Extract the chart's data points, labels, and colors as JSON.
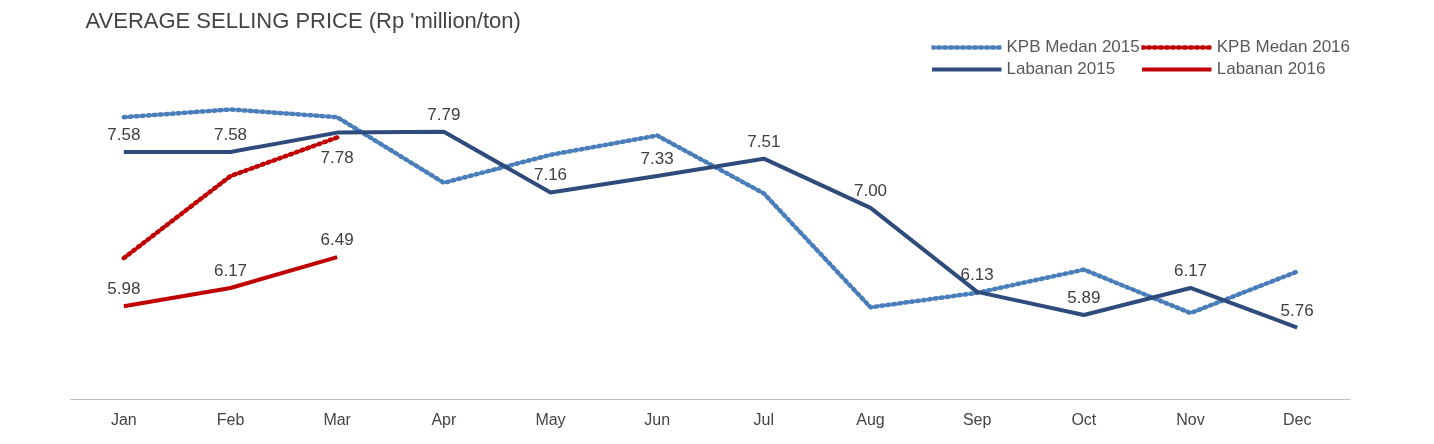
{
  "chart_data": {
    "type": "line",
    "title": "AVERAGE SELLING PRICE (Rp 'million/ton)",
    "categories": [
      "Jan",
      "Feb",
      "Mar",
      "Apr",
      "May",
      "Jun",
      "Jul",
      "Aug",
      "Sep",
      "Oct",
      "Nov",
      "Dec"
    ],
    "series": [
      {
        "name": "KPB Medan 2015",
        "color": "#4a7ebb",
        "line_style": "dotted",
        "values": [
          7.94,
          8.02,
          7.94,
          7.26,
          7.55,
          7.75,
          7.15,
          5.97,
          6.12,
          6.36,
          5.91,
          6.34
        ]
      },
      {
        "name": "KPB Medan 2016",
        "color": "#c00000",
        "line_style": "dotted",
        "values": [
          6.48,
          7.33,
          7.73,
          null,
          null,
          null,
          null,
          null,
          null,
          null,
          null,
          null
        ]
      },
      {
        "name": "Labanan 2015",
        "color": "#2f4b7c",
        "line_style": "solid",
        "values": [
          7.58,
          7.58,
          7.78,
          7.79,
          7.16,
          7.33,
          7.51,
          7.0,
          6.13,
          5.89,
          6.17,
          5.76
        ],
        "value_labels": [
          "7.58",
          "7.58",
          "7.78",
          "7.79",
          "7.16",
          "7.33",
          "7.51",
          "7.00",
          "6.13",
          "5.89",
          "6.17",
          "5.76"
        ]
      },
      {
        "name": "Labanan 2016",
        "color": "#c00000",
        "line_style": "solid",
        "values": [
          5.98,
          6.17,
          6.49,
          null,
          null,
          null,
          null,
          null,
          null,
          null,
          null,
          null
        ],
        "value_labels": [
          "5.98",
          "6.17",
          "6.49",
          null,
          null,
          null,
          null,
          null,
          null,
          null,
          null,
          null
        ]
      }
    ],
    "tick_labels": "x",
    "grid": false,
    "legend": "top right",
    "marker": "none"
  }
}
